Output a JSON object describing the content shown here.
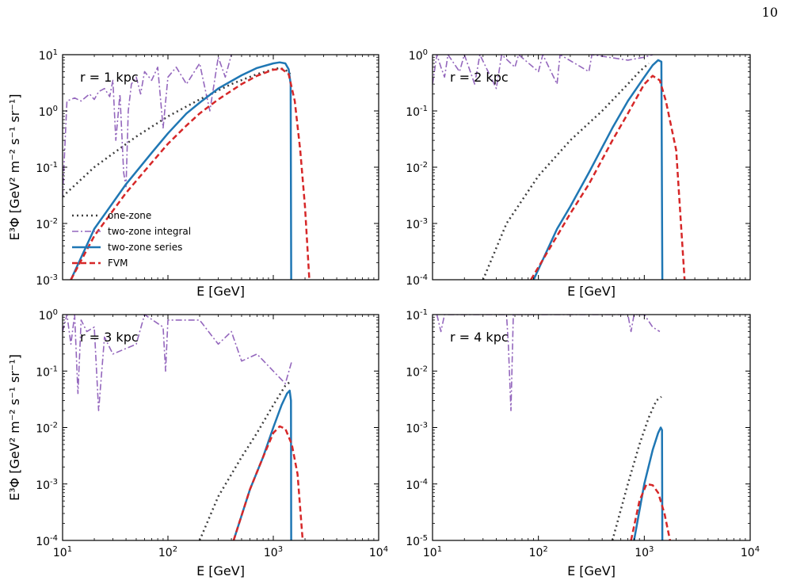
{
  "page_number": "10",
  "chart_data": [
    {
      "type": "line",
      "panel_label": "r = 1 kpc",
      "xlabel": "E [GeV]",
      "ylabel": "E³Φ [GeV² m⁻² s⁻¹ sr⁻¹]",
      "x_scale": "log",
      "y_scale": "log",
      "xlim": [
        10,
        10000
      ],
      "ylim": [
        0.001,
        10
      ],
      "legend_position": "lower-left",
      "series": [
        {
          "name": "one-zone",
          "points": [
            [
              10,
              0.03
            ],
            [
              20,
              0.1
            ],
            [
              50,
              0.35
            ],
            [
              100,
              0.8
            ],
            [
              200,
              1.6
            ],
            [
              400,
              3.0
            ],
            [
              700,
              4.5
            ],
            [
              1000,
              5.5
            ],
            [
              1150,
              5.8
            ],
            [
              1300,
              5.4
            ],
            [
              1450,
              4.5
            ]
          ]
        },
        {
          "name": "two-zone integral",
          "points": [
            [
              10,
              0.03
            ],
            [
              11,
              1.5
            ],
            [
              13,
              1.7
            ],
            [
              15,
              1.5
            ],
            [
              18,
              2.0
            ],
            [
              20,
              1.6
            ],
            [
              22,
              2.2
            ],
            [
              25,
              2.5
            ],
            [
              28,
              1.8
            ],
            [
              30,
              3.5
            ],
            [
              32,
              0.3
            ],
            [
              35,
              2.0
            ],
            [
              38,
              0.08
            ],
            [
              40,
              0.045
            ],
            [
              42,
              1.0
            ],
            [
              45,
              3.0
            ],
            [
              50,
              4.0
            ],
            [
              55,
              2.0
            ],
            [
              60,
              5.0
            ],
            [
              70,
              3.5
            ],
            [
              80,
              6.0
            ],
            [
              90,
              0.5
            ],
            [
              100,
              4.0
            ],
            [
              120,
              6.0
            ],
            [
              150,
              3.0
            ],
            [
              200,
              7.0
            ],
            [
              250,
              1.0
            ],
            [
              300,
              9.0
            ],
            [
              350,
              4.0
            ],
            [
              400,
              10
            ]
          ]
        },
        {
          "name": "two-zone series",
          "points": [
            [
              12,
              0.001
            ],
            [
              20,
              0.008
            ],
            [
              40,
              0.05
            ],
            [
              70,
              0.18
            ],
            [
              100,
              0.4
            ],
            [
              150,
              0.9
            ],
            [
              200,
              1.4
            ],
            [
              300,
              2.5
            ],
            [
              500,
              4.3
            ],
            [
              700,
              5.8
            ],
            [
              1000,
              7.0
            ],
            [
              1150,
              7.3
            ],
            [
              1300,
              7.0
            ],
            [
              1400,
              5.5
            ],
            [
              1460,
              3.0
            ],
            [
              1480,
              0.001
            ]
          ]
        },
        {
          "name": "FVM",
          "points": [
            [
              12,
              0.001
            ],
            [
              20,
              0.006
            ],
            [
              40,
              0.035
            ],
            [
              70,
              0.12
            ],
            [
              100,
              0.26
            ],
            [
              150,
              0.55
            ],
            [
              200,
              0.9
            ],
            [
              300,
              1.6
            ],
            [
              500,
              3.0
            ],
            [
              700,
              4.2
            ],
            [
              1000,
              5.4
            ],
            [
              1200,
              5.6
            ],
            [
              1400,
              4.5
            ],
            [
              1600,
              1.5
            ],
            [
              1800,
              0.2
            ],
            [
              2000,
              0.02
            ],
            [
              2200,
              0.001
            ]
          ]
        }
      ]
    },
    {
      "type": "line",
      "panel_label": "r = 2 kpc",
      "xlabel": "E [GeV]",
      "ylabel": "",
      "x_scale": "log",
      "y_scale": "log",
      "xlim": [
        10,
        10000
      ],
      "ylim": [
        0.0001,
        1
      ],
      "series": [
        {
          "name": "one-zone",
          "points": [
            [
              30,
              0.0001
            ],
            [
              50,
              0.001
            ],
            [
              100,
              0.007
            ],
            [
              200,
              0.03
            ],
            [
              400,
              0.1
            ],
            [
              700,
              0.3
            ],
            [
              900,
              0.5
            ],
            [
              1100,
              0.7
            ]
          ]
        },
        {
          "name": "two-zone integral",
          "points": [
            [
              10,
              0.3
            ],
            [
              11,
              1.0
            ],
            [
              12,
              0.6
            ],
            [
              13,
              0.4
            ],
            [
              14,
              1.0
            ],
            [
              18,
              0.5
            ],
            [
              20,
              1.0
            ],
            [
              25,
              0.3
            ],
            [
              28,
              1.0
            ],
            [
              40,
              0.25
            ],
            [
              45,
              1.0
            ],
            [
              60,
              0.6
            ],
            [
              65,
              1.0
            ],
            [
              100,
              0.5
            ],
            [
              110,
              1.0
            ],
            [
              150,
              0.3
            ],
            [
              160,
              1.0
            ],
            [
              300,
              0.5
            ],
            [
              320,
              1.0
            ],
            [
              700,
              0.8
            ],
            [
              1000,
              0.9
            ],
            [
              1200,
              1.0
            ]
          ]
        },
        {
          "name": "two-zone series",
          "points": [
            [
              90,
              0.0001
            ],
            [
              150,
              0.0008
            ],
            [
              200,
              0.002
            ],
            [
              300,
              0.008
            ],
            [
              500,
              0.05
            ],
            [
              700,
              0.15
            ],
            [
              1000,
              0.4
            ],
            [
              1200,
              0.65
            ],
            [
              1350,
              0.8
            ],
            [
              1450,
              0.75
            ],
            [
              1480,
              0.0001
            ]
          ]
        },
        {
          "name": "FVM",
          "points": [
            [
              85,
              0.0001
            ],
            [
              150,
              0.0006
            ],
            [
              200,
              0.0015
            ],
            [
              300,
              0.005
            ],
            [
              500,
              0.03
            ],
            [
              700,
              0.09
            ],
            [
              1000,
              0.3
            ],
            [
              1200,
              0.42
            ],
            [
              1400,
              0.35
            ],
            [
              1600,
              0.15
            ],
            [
              2000,
              0.02
            ],
            [
              2400,
              0.0001
            ]
          ]
        }
      ]
    },
    {
      "type": "line",
      "panel_label": "r = 3 kpc",
      "xlabel": "E [GeV]",
      "ylabel": "E³Φ [GeV² m⁻² s⁻¹ sr⁻¹]",
      "x_scale": "log",
      "y_scale": "log",
      "xlim": [
        10,
        10000
      ],
      "ylim": [
        0.0001,
        1
      ],
      "series": [
        {
          "name": "one-zone",
          "points": [
            [
              200,
              0.0001
            ],
            [
              300,
              0.0006
            ],
            [
              500,
              0.003
            ],
            [
              700,
              0.008
            ],
            [
              1000,
              0.025
            ],
            [
              1300,
              0.055
            ],
            [
              1450,
              0.065
            ]
          ]
        },
        {
          "name": "two-zone integral",
          "points": [
            [
              10,
              0.5
            ],
            [
              11,
              1.0
            ],
            [
              12,
              0.3
            ],
            [
              13,
              1.0
            ],
            [
              14,
              0.04
            ],
            [
              15,
              0.8
            ],
            [
              17,
              0.5
            ],
            [
              20,
              0.6
            ],
            [
              22,
              0.02
            ],
            [
              25,
              0.4
            ],
            [
              30,
              0.2
            ],
            [
              50,
              0.3
            ],
            [
              60,
              1.0
            ],
            [
              90,
              0.6
            ],
            [
              95,
              0.1
            ],
            [
              100,
              0.8
            ],
            [
              200,
              0.8
            ],
            [
              300,
              0.3
            ],
            [
              400,
              0.5
            ],
            [
              500,
              0.15
            ],
            [
              700,
              0.2
            ],
            [
              1000,
              0.1
            ],
            [
              1300,
              0.06
            ],
            [
              1500,
              0.15
            ]
          ]
        },
        {
          "name": "two-zone series",
          "points": [
            [
              420,
              0.0001
            ],
            [
              600,
              0.0008
            ],
            [
              800,
              0.003
            ],
            [
              1000,
              0.01
            ],
            [
              1200,
              0.025
            ],
            [
              1350,
              0.04
            ],
            [
              1430,
              0.045
            ],
            [
              1470,
              0.03
            ],
            [
              1480,
              0.0001
            ]
          ]
        },
        {
          "name": "FVM",
          "points": [
            [
              420,
              0.0001
            ],
            [
              600,
              0.0008
            ],
            [
              800,
              0.003
            ],
            [
              1000,
              0.008
            ],
            [
              1150,
              0.0105
            ],
            [
              1300,
              0.0095
            ],
            [
              1500,
              0.005
            ],
            [
              1700,
              0.0015
            ],
            [
              1900,
              0.0001
            ]
          ]
        }
      ]
    },
    {
      "type": "line",
      "panel_label": "r = 4 kpc",
      "xlabel": "E [GeV]",
      "ylabel": "",
      "x_scale": "log",
      "y_scale": "log",
      "xlim": [
        10,
        10000
      ],
      "ylim": [
        1e-05,
        0.1
      ],
      "series": [
        {
          "name": "one-zone",
          "points": [
            [
              500,
              1e-05
            ],
            [
              700,
              0.0001
            ],
            [
              900,
              0.0005
            ],
            [
              1100,
              0.0015
            ],
            [
              1300,
              0.003
            ],
            [
              1450,
              0.0035
            ]
          ]
        },
        {
          "name": "two-zone integral",
          "points": [
            [
              11,
              0.1
            ],
            [
              12,
              0.05
            ],
            [
              13,
              0.1
            ],
            [
              50,
              0.1
            ],
            [
              52,
              0.03
            ],
            [
              55,
              0.002
            ],
            [
              58,
              0.1
            ],
            [
              700,
              0.1
            ],
            [
              750,
              0.05
            ],
            [
              800,
              0.1
            ],
            [
              1000,
              0.1
            ],
            [
              1200,
              0.06
            ],
            [
              1400,
              0.05
            ]
          ]
        },
        {
          "name": "two-zone series",
          "points": [
            [
              800,
              1e-05
            ],
            [
              1000,
              0.0001
            ],
            [
              1200,
              0.0004
            ],
            [
              1350,
              0.0008
            ],
            [
              1430,
              0.001
            ],
            [
              1470,
              0.0009
            ],
            [
              1480,
              1e-05
            ]
          ]
        },
        {
          "name": "FVM",
          "points": [
            [
              750,
              1e-05
            ],
            [
              900,
              5e-05
            ],
            [
              1050,
              0.0001
            ],
            [
              1200,
              9.5e-05
            ],
            [
              1350,
              7e-05
            ],
            [
              1550,
              3e-05
            ],
            [
              1750,
              1e-05
            ]
          ]
        }
      ]
    }
  ],
  "series_styles": {
    "one-zone": {
      "color": "#3d3d3d",
      "dash": "2,4",
      "width": 2.5
    },
    "two-zone integral": {
      "color": "#9467bd",
      "dash": "8,3,2,3",
      "width": 1.6
    },
    "two-zone series": {
      "color": "#1f77b4",
      "dash": "",
      "width": 2.5
    },
    "FVM": {
      "color": "#d62728",
      "dash": "7,4",
      "width": 2.5
    }
  }
}
